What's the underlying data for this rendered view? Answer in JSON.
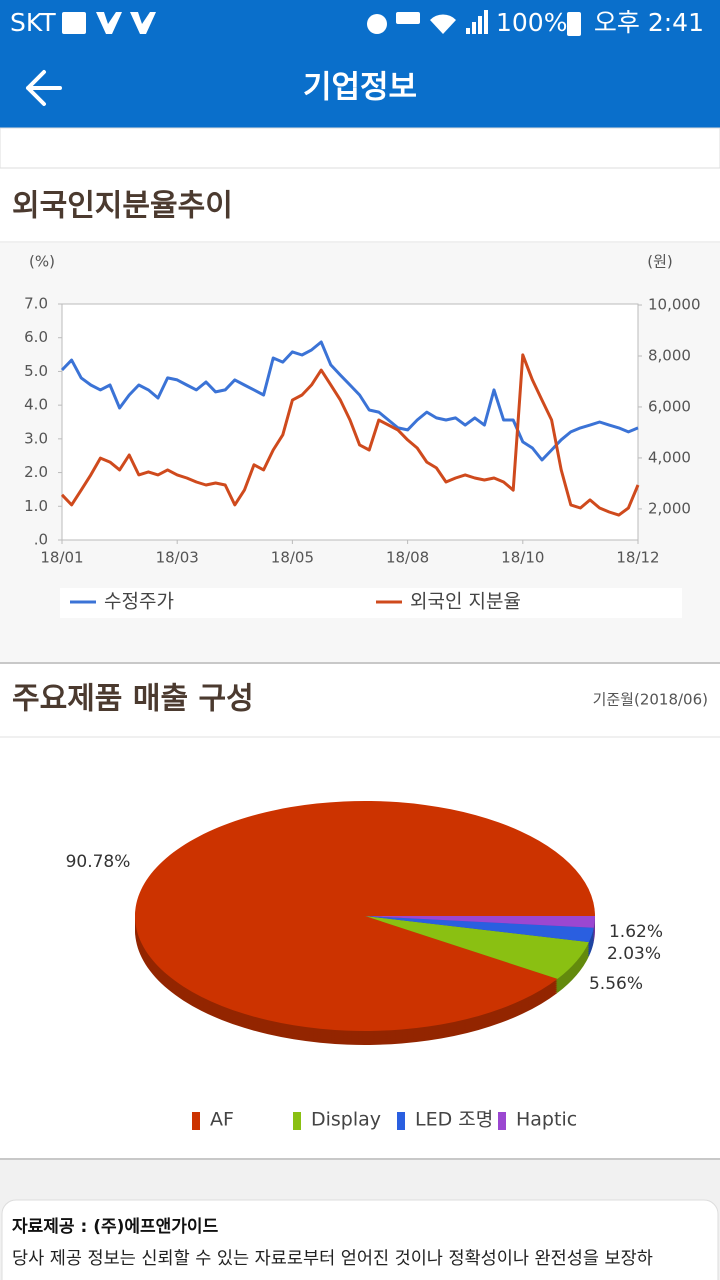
{
  "status_bar": {
    "carrier": "SKT",
    "battery": "100%",
    "time": "오후 2:41"
  },
  "app_bar": {
    "title": "기업정보"
  },
  "sections": [
    {
      "title": "외국인지분율추이"
    },
    {
      "title": "주요제품 매출 구성",
      "note": "기준월(2018/06)"
    }
  ],
  "chart_data": [
    {
      "type": "line",
      "y_label": "(%)",
      "y2_label": "(원)",
      "categories": [
        "18/01",
        null,
        null,
        null,
        null,
        null,
        null,
        null,
        null,
        null,
        null,
        null,
        "18/03",
        null,
        null,
        null,
        null,
        null,
        null,
        null,
        null,
        null,
        null,
        null,
        "18/05",
        null,
        null,
        null,
        null,
        null,
        null,
        null,
        null,
        null,
        null,
        null,
        "18/08",
        null,
        null,
        null,
        null,
        null,
        null,
        null,
        null,
        null,
        null,
        null,
        "18/10",
        null,
        null,
        null,
        null,
        null,
        null,
        null,
        null,
        null,
        null,
        null,
        "18/12"
      ],
      "ylim": [
        0,
        7
      ],
      "yticks": [
        {
          "value": 0,
          "label": ".0"
        },
        {
          "value": 1,
          "label": "1.0"
        },
        {
          "value": 2,
          "label": "2.0"
        },
        {
          "value": 3,
          "label": "3.0"
        },
        {
          "value": 4,
          "label": "4.0"
        },
        {
          "value": 5,
          "label": "5.0"
        },
        {
          "value": 6,
          "label": "6.0"
        },
        {
          "value": 7,
          "label": "7.0"
        }
      ],
      "y2lim": [
        780,
        10040
      ],
      "y2ticks": [
        {
          "value": 2000,
          "label": "2,000"
        },
        {
          "value": 4000,
          "label": "4,000"
        },
        {
          "value": 6000,
          "label": "6,000"
        },
        {
          "value": 8000,
          "label": "8,000"
        },
        {
          "value": 10000,
          "label": "10,000"
        }
      ],
      "grid": false,
      "series": [
        {
          "name": "수정주가",
          "color": "#3b73d6",
          "axis": "y2",
          "values": [
            7450,
            7840,
            7140,
            6860,
            6670,
            6860,
            5960,
            6470,
            6860,
            6670,
            6350,
            7140,
            7060,
            6860,
            6670,
            6980,
            6590,
            6670,
            7060,
            6860,
            6670,
            6470,
            7920,
            7760,
            8160,
            8040,
            8240,
            8550,
            7650,
            7250,
            6860,
            6470,
            5880,
            5800,
            5490,
            5180,
            5100,
            5490,
            5800,
            5570,
            5490,
            5570,
            5290,
            5570,
            5290,
            6670,
            5490,
            5490,
            4630,
            4390,
            3920,
            4310,
            4710,
            5020,
            5180,
            5290,
            5410,
            5290,
            5180,
            5020,
            5180
          ]
        },
        {
          "name": "외국인 지분율",
          "color": "#cf4a1d",
          "values": [
            1.34,
            1.04,
            1.48,
            1.93,
            2.43,
            2.31,
            2.08,
            2.52,
            1.93,
            2.02,
            1.93,
            2.08,
            1.93,
            1.84,
            1.72,
            1.63,
            1.69,
            1.63,
            1.04,
            1.48,
            2.23,
            2.08,
            2.67,
            3.12,
            4.15,
            4.3,
            4.6,
            5.04,
            4.6,
            4.15,
            3.56,
            2.82,
            2.67,
            3.56,
            3.41,
            3.26,
            2.97,
            2.73,
            2.31,
            2.14,
            1.72,
            1.84,
            1.93,
            1.84,
            1.78,
            1.84,
            1.72,
            1.48,
            5.49,
            4.75,
            4.15,
            3.56,
            2.08,
            1.04,
            0.95,
            1.19,
            0.95,
            0.83,
            0.74,
            0.95,
            1.63
          ]
        }
      ]
    },
    {
      "type": "pie",
      "categories": [
        "AF",
        "Display",
        "LED 조명",
        "Haptic"
      ],
      "values": [
        90.78,
        5.56,
        2.03,
        1.62
      ],
      "value_labels": [
        "90.78%",
        "5.56%",
        "2.03%",
        "1.62%"
      ],
      "colors": [
        "#cc3300",
        "#8ac012",
        "#2a5fe0",
        "#9b47d1"
      ]
    }
  ],
  "footer": {
    "title": "자료제공 : (주)에프앤가이드",
    "text": "당사 제공 정보는 신뢰할 수 있는 자료로부터 얻어진 것이나 정확성이나 완전성을 보장하"
  }
}
